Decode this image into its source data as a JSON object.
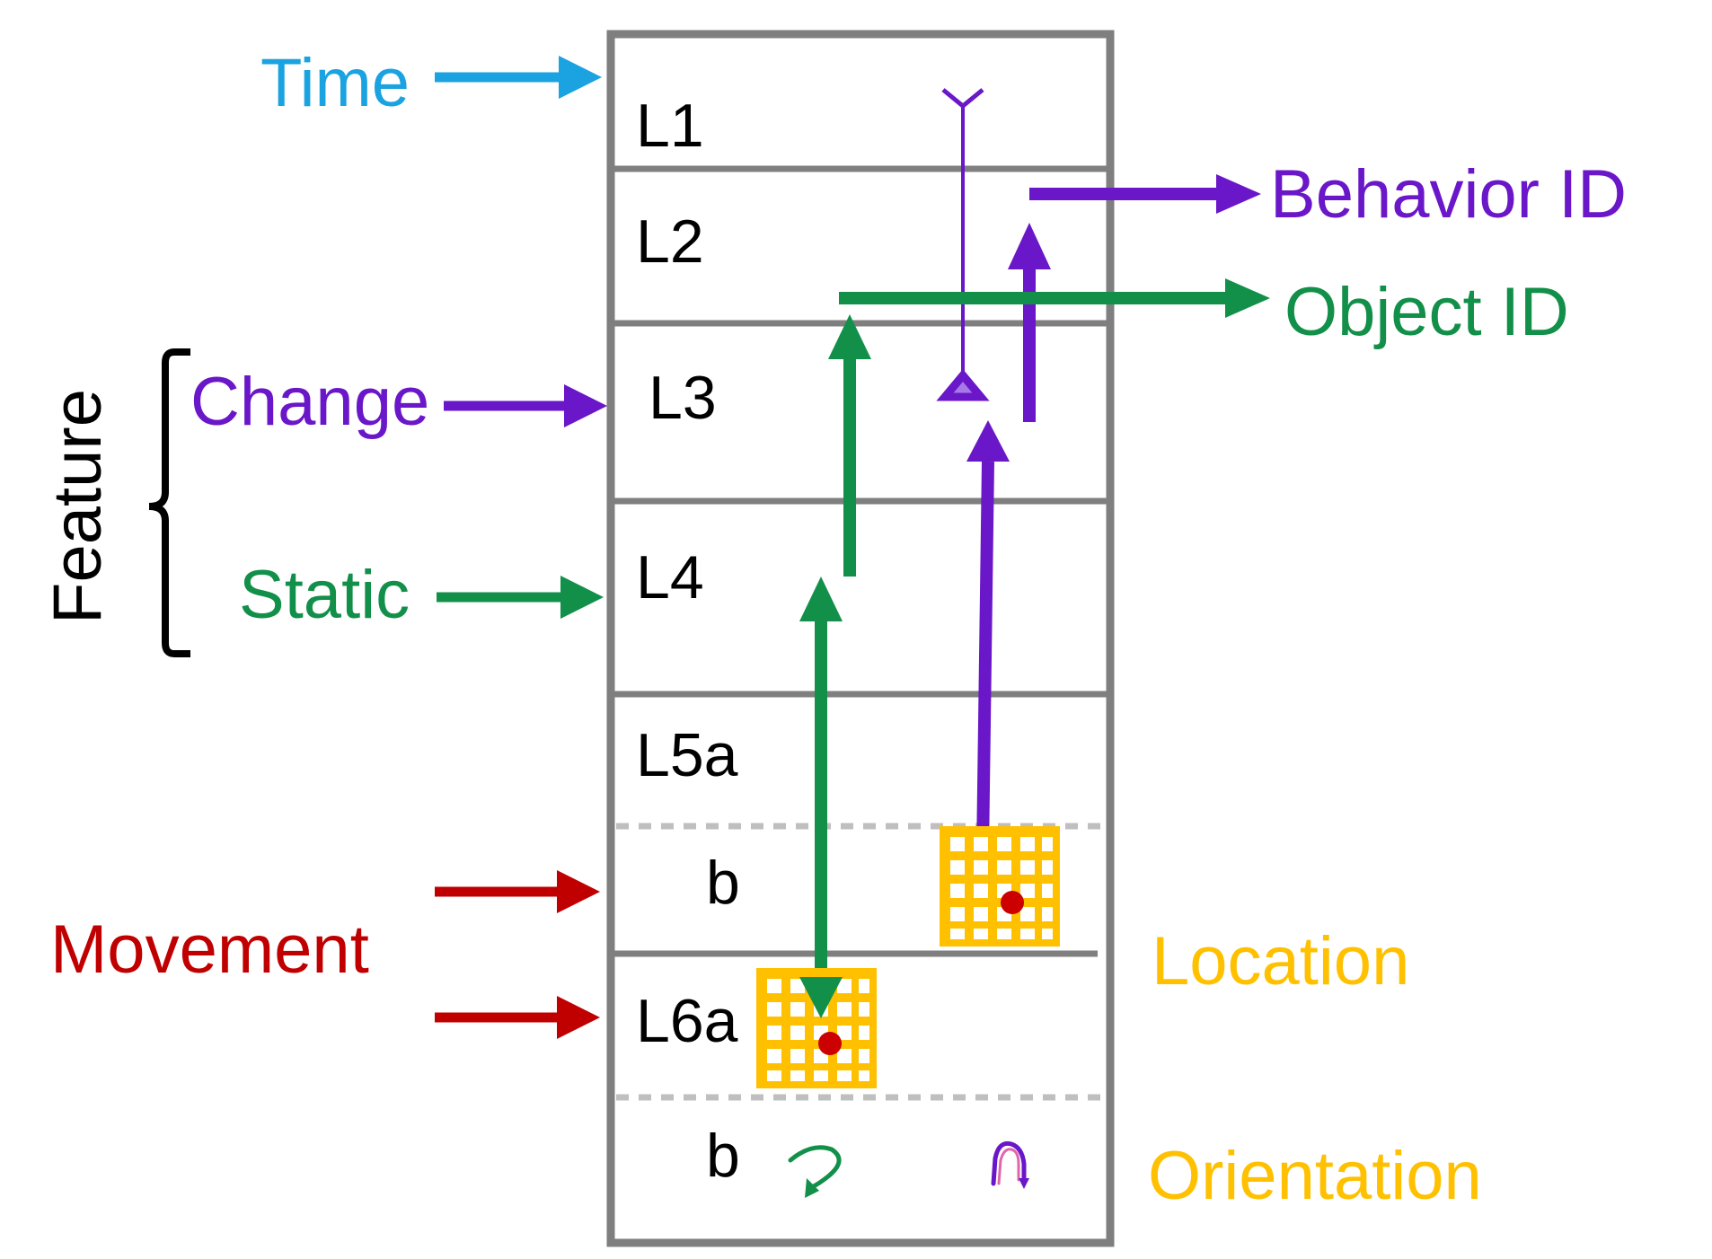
{
  "layers": {
    "L1": "L1",
    "L2": "L2",
    "L3": "L3",
    "L4": "L4",
    "L5a": "L5a",
    "L5b": "b",
    "L6a": "L6a",
    "L6b": "b"
  },
  "inputs": {
    "time": "Time",
    "feature": "Feature",
    "change": "Change",
    "static": "Static",
    "movement": "Movement"
  },
  "outputs": {
    "behavior_id": "Behavior ID",
    "object_id": "Object ID"
  },
  "frames": {
    "location": "Location",
    "orientation": "Orientation"
  },
  "colors": {
    "time": "#1aa3e0",
    "purple": "#6a16c9",
    "green": "#12904a",
    "red": "#c00000",
    "orange": "#ffc000",
    "border": "#7f7f7f",
    "dot": "#cc0000"
  }
}
